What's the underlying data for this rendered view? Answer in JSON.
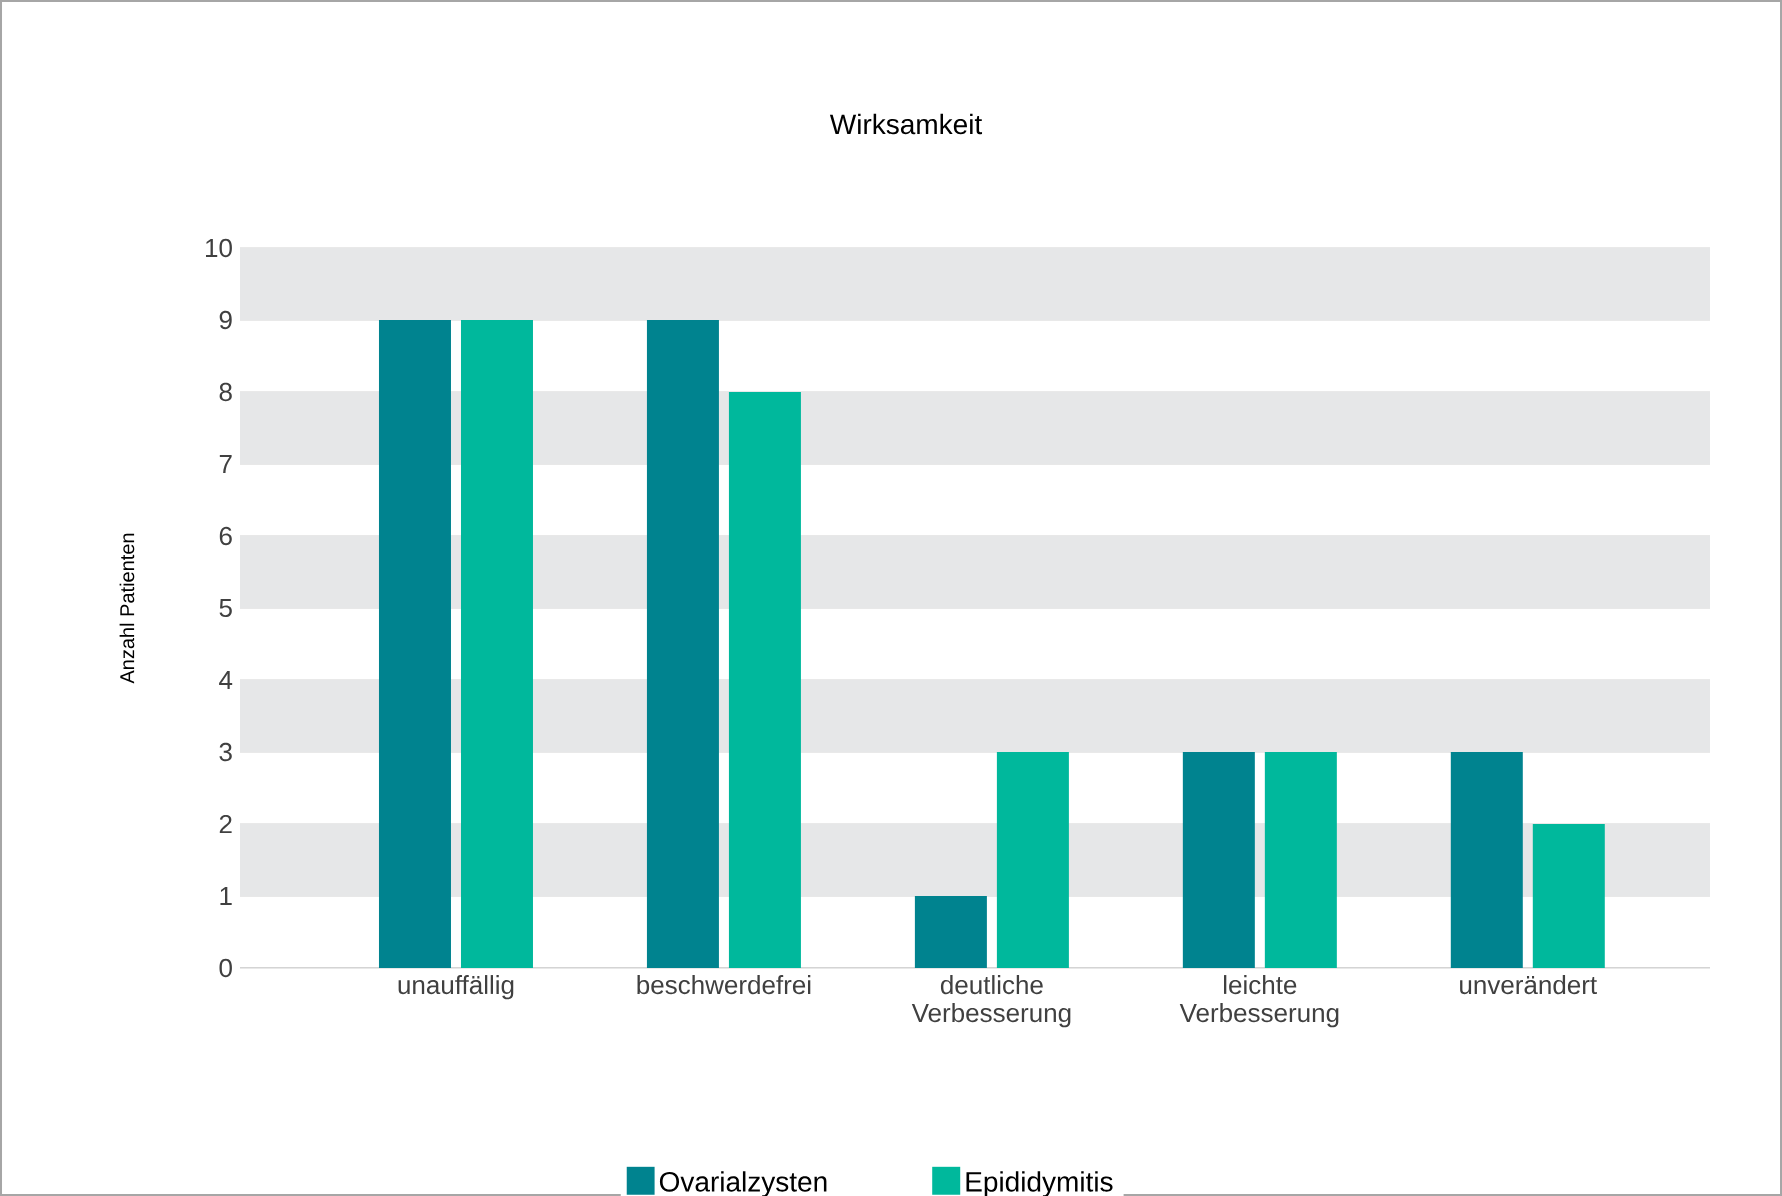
{
  "chart_data": {
    "type": "bar",
    "title": "Wirksamkeit",
    "ylabel": "Anzahl Patienten",
    "categories": [
      "unauffällig",
      "beschwerdefrei",
      "deutliche Verbesserung",
      "leichte Verbesserung",
      "unverändert"
    ],
    "series": [
      {
        "name": "Ovarialzysten",
        "color": "#00838f",
        "values": [
          9,
          9,
          1,
          3,
          3
        ]
      },
      {
        "name": "Epididymitis",
        "color": "#00b89c",
        "values": [
          9,
          8,
          3,
          3,
          2
        ]
      }
    ],
    "ylim": [
      0,
      10
    ],
    "yticks": [
      0,
      1,
      2,
      3,
      4,
      5,
      6,
      7,
      8,
      9,
      10
    ],
    "grid": "y",
    "legend": "bottom"
  }
}
